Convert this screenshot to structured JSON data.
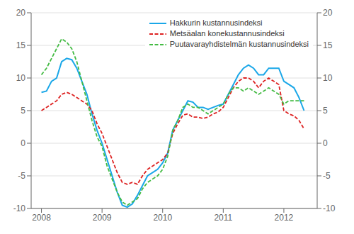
{
  "chart_data": {
    "type": "line",
    "legend": "upper right",
    "grid": true,
    "x": [
      2008,
      2008.0833333333333,
      2008.1666666666667,
      2008.25,
      2008.3333333333333,
      2008.4166666666667,
      2008.5,
      2008.5833333333333,
      2008.6666666666667,
      2008.75,
      2008.8333333333333,
      2008.9166666666667,
      2009,
      2009.0833333333333,
      2009.1666666666667,
      2009.25,
      2009.3333333333333,
      2009.4166666666667,
      2009.5,
      2009.5833333333333,
      2009.6666666666667,
      2009.75,
      2009.8333333333333,
      2009.9166666666667,
      2010,
      2010.0833333333333,
      2010.1666666666667,
      2010.25,
      2010.3333333333333,
      2010.4166666666667,
      2010.5,
      2010.5833333333333,
      2010.6666666666667,
      2010.75,
      2010.8333333333333,
      2010.9166666666667,
      2011,
      2011.0833333333333,
      2011.1666666666667,
      2011.25,
      2011.3333333333333,
      2011.4166666666667,
      2011.5,
      2011.5833333333333,
      2011.6666666666667,
      2011.75,
      2011.8333333333333,
      2011.9166666666667,
      2012,
      2012.0833333333333,
      2012.1666666666667,
      2012.25,
      2012.3333333333333
    ],
    "series": [
      {
        "name": "Hakkurin kustannusindeksi",
        "color": "#1aa7e8",
        "line_style": "solid",
        "values": [
          7.8,
          8.0,
          9.5,
          10.0,
          12.5,
          13.0,
          12.8,
          11.5,
          9.5,
          7.5,
          4.5,
          2.0,
          0.0,
          -2.5,
          -5.0,
          -7.5,
          -9.5,
          -9.8,
          -9.3,
          -8.0,
          -6.5,
          -5.0,
          -4.5,
          -4.0,
          -3.0,
          -1.5,
          2.0,
          3.5,
          5.0,
          6.5,
          6.3,
          5.5,
          5.5,
          5.2,
          5.5,
          5.8,
          6.0,
          7.5,
          9.0,
          10.5,
          11.5,
          12.0,
          11.5,
          10.5,
          10.5,
          11.5,
          11.5,
          11.5,
          9.5,
          9.0,
          8.5,
          7.0,
          5.0
        ]
      },
      {
        "name": "Metsäalan konekustannusindeksi",
        "color": "#dd2222",
        "line_style": "dashed",
        "values": [
          5.0,
          5.5,
          6.0,
          6.5,
          7.5,
          7.8,
          7.5,
          7.0,
          6.5,
          6.0,
          5.0,
          3.0,
          1.5,
          -0.5,
          -2.5,
          -4.5,
          -6.0,
          -6.3,
          -6.0,
          -6.3,
          -5.0,
          -4.0,
          -3.5,
          -3.0,
          -2.5,
          -1.5,
          1.5,
          3.0,
          4.3,
          4.5,
          4.0,
          4.0,
          3.8,
          4.0,
          4.5,
          4.8,
          5.5,
          7.0,
          8.5,
          9.5,
          10.0,
          10.0,
          9.5,
          8.5,
          9.5,
          10.0,
          9.5,
          9.0,
          5.0,
          4.5,
          4.2,
          3.5,
          2.2
        ]
      },
      {
        "name": "Puutavarayhdistelmän kustannusindeksi",
        "color": "#44bb44",
        "line_style": "dashed",
        "values": [
          10.5,
          11.5,
          13.0,
          14.5,
          16.0,
          15.5,
          14.5,
          12.5,
          9.5,
          6.5,
          3.5,
          1.0,
          -0.5,
          -3.5,
          -5.5,
          -7.5,
          -9.0,
          -9.5,
          -9.0,
          -8.5,
          -7.0,
          -6.0,
          -5.5,
          -5.0,
          -4.0,
          -2.0,
          2.0,
          3.5,
          5.5,
          6.0,
          5.5,
          5.5,
          5.0,
          4.5,
          5.0,
          5.5,
          6.0,
          7.5,
          8.5,
          8.5,
          8.0,
          8.5,
          8.0,
          7.5,
          8.0,
          8.5,
          8.0,
          7.5,
          6.0,
          6.5,
          6.5,
          6.5,
          6.5
        ]
      }
    ],
    "xlim": [
      2007.83,
      2012.55
    ],
    "xticks": [
      2008,
      2009,
      2010,
      2011,
      2012
    ],
    "ylim": [
      -10,
      20
    ],
    "yticks": [
      -10,
      -5,
      0,
      5,
      10,
      15,
      20
    ],
    "y2lim": [
      -10,
      20
    ],
    "y2ticks": [
      -10,
      -5,
      0,
      5,
      10,
      15,
      20
    ]
  }
}
